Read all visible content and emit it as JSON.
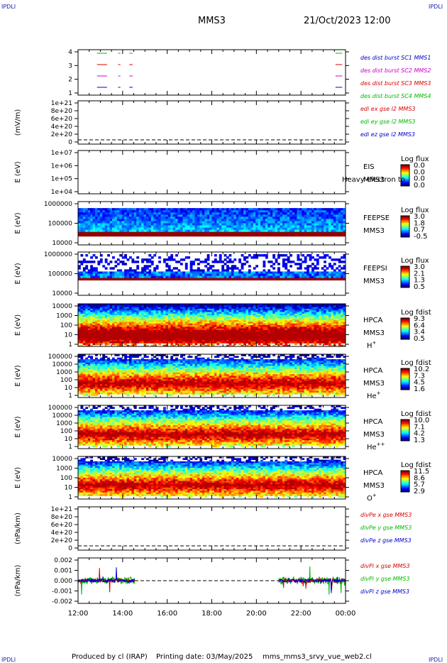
{
  "header": {
    "logo_left": "IPDLI",
    "logo_right": "IPDLI",
    "title": "MMS3",
    "date": "21/Oct/2023 12:00"
  },
  "footer": {
    "logo_left": "IPDLI",
    "logo_right": "IPDLI",
    "produced": "Produced by cl (IRAP)",
    "printing": "Printing date: 03/May/2025",
    "script": "mms_mms3_srvy_vue_web2.cl"
  },
  "colors": {
    "panel_border": "#000000",
    "blue": "#0000cc",
    "red": "#dd0000",
    "green": "#00bb00",
    "magenta": "#cc00cc",
    "spectrogram_floor": "#cc0000"
  },
  "chart_data": {
    "type": "heatmap",
    "x_axis": {
      "ticks": [
        "12:00",
        "14:00",
        "16:00",
        "18:00",
        "20:00",
        "22:00",
        "00:00"
      ],
      "range_hours": [
        12,
        24
      ]
    },
    "panels": [
      {
        "id": "burst",
        "type": "scatter",
        "ylabel": "",
        "yticks": [
          "4",
          "3",
          "2",
          "1"
        ],
        "legend": [
          {
            "text": "des dist burst SC1 MMS1",
            "color": "#0000cc"
          },
          {
            "text": "des dist burst SC2 MMS2",
            "color": "#cc00cc"
          },
          {
            "text": "des dist burst SC3 MMS3",
            "color": "#dd0000"
          },
          {
            "text": "des dist burst SC4 MMS4",
            "color": "#00bb00"
          }
        ],
        "intervals_hours": [
          [
            12.85,
            13.3
          ],
          [
            13.8,
            13.9
          ],
          [
            14.3,
            14.45
          ],
          [
            23.55,
            23.85
          ]
        ]
      },
      {
        "id": "edi",
        "type": "line",
        "ylabel": "(mV/m)",
        "yticks": [
          "1e+21",
          "8e+20",
          "6e+20",
          "4e+20",
          "2e+20",
          "0"
        ],
        "legend": [
          {
            "text": "edi ex gse l2 MMS3",
            "color": "#dd0000"
          },
          {
            "text": "edi ey gse l2 MMS3",
            "color": "#00bb00"
          },
          {
            "text": "edi ez gse l2 MMS3",
            "color": "#0000cc"
          }
        ]
      },
      {
        "id": "eis",
        "type": "heatmap",
        "ylabel": "E (eV)",
        "yticks": [
          "1e+07",
          "1e+06",
          "1e+05",
          "1e+04"
        ],
        "side_labels": [
          "EIS",
          "MMS3"
        ],
        "overlay_text": "Heavy electron to",
        "colorbar_title": "Log flux",
        "colorbar_ticks": [
          "0.0",
          "0.0",
          "0.0",
          "0.0"
        ]
      },
      {
        "id": "feepse",
        "type": "heatmap",
        "ylabel": "E (eV)",
        "yticks": [
          "1000000",
          "100000",
          "10000"
        ],
        "side_labels": [
          "FEEPSE",
          "MMS3"
        ],
        "colorbar_title": "Log flux",
        "colorbar_ticks": [
          "3.0",
          "1.8",
          "0.7",
          "-0.5"
        ]
      },
      {
        "id": "feepsi",
        "type": "heatmap",
        "ylabel": "E (eV)",
        "yticks": [
          "1000000",
          "100000",
          "10000"
        ],
        "side_labels": [
          "FEEPSI",
          "MMS3"
        ],
        "colorbar_title": "Log flux",
        "colorbar_ticks": [
          "3.0",
          "2.1",
          "1.3",
          "0.5"
        ]
      },
      {
        "id": "hpca_h",
        "type": "heatmap",
        "ylabel": "E (eV)",
        "yticks": [
          "10000",
          "1000",
          "100",
          "10",
          "1"
        ],
        "side_labels": [
          "HPCA",
          "MMS3"
        ],
        "species": "H",
        "species_sup": "+",
        "colorbar_title": "Log fdist",
        "colorbar_ticks": [
          "9.3",
          "6.4",
          "3.4",
          "0.5"
        ]
      },
      {
        "id": "hpca_he1",
        "type": "heatmap",
        "ylabel": "E (eV)",
        "yticks": [
          "100000",
          "10000",
          "1000",
          "100",
          "10",
          "1"
        ],
        "side_labels": [
          "HPCA",
          "MMS3"
        ],
        "species": "He",
        "species_sup": "+",
        "colorbar_title": "Log fdist",
        "colorbar_ticks": [
          "10.2",
          "7.3",
          "4.5",
          "1.6"
        ]
      },
      {
        "id": "hpca_he2",
        "type": "heatmap",
        "ylabel": "E (eV)",
        "yticks": [
          "100000",
          "10000",
          "1000",
          "100",
          "10",
          "1"
        ],
        "side_labels": [
          "HPCA",
          "MMS3"
        ],
        "species": "He",
        "species_sup": "++",
        "colorbar_title": "Log fdist",
        "colorbar_ticks": [
          "10.0",
          "7.1",
          "4.2",
          "1.3"
        ]
      },
      {
        "id": "hpca_o",
        "type": "heatmap",
        "ylabel": "E (eV)",
        "yticks": [
          "10000",
          "1000",
          "100",
          "10",
          "1"
        ],
        "side_labels": [
          "HPCA",
          "MMS3"
        ],
        "species": "O",
        "species_sup": "+",
        "colorbar_title": "Log fdist",
        "colorbar_ticks": [
          "11.5",
          "8.6",
          "5.7",
          "2.9"
        ]
      },
      {
        "id": "divpe",
        "type": "line",
        "ylabel": "(nPa/km)",
        "yticks": [
          "1e+21",
          "8e+20",
          "6e+20",
          "4e+20",
          "2e+20",
          "0"
        ],
        "legend": [
          {
            "text": "divPe x gse MMS3",
            "color": "#dd0000"
          },
          {
            "text": "divPe y gse MMS3",
            "color": "#00bb00"
          },
          {
            "text": "divPe z gse MMS3",
            "color": "#0000cc"
          }
        ]
      },
      {
        "id": "divpi",
        "type": "line",
        "ylabel": "(nPa/km)",
        "yticks": [
          "0.002",
          "0.001",
          "0.000",
          "-0.001",
          "-0.002"
        ],
        "ylim": [
          -0.0025,
          0.0025
        ],
        "legend": [
          {
            "text": "divPi x gse MMS3",
            "color": "#dd0000"
          },
          {
            "text": "divPi y gse MMS3",
            "color": "#00bb00"
          },
          {
            "text": "divPi z gse MMS3",
            "color": "#0000cc"
          }
        ],
        "data_intervals_hours": [
          [
            12.0,
            14.55
          ],
          [
            21.0,
            24.0
          ]
        ]
      }
    ]
  }
}
